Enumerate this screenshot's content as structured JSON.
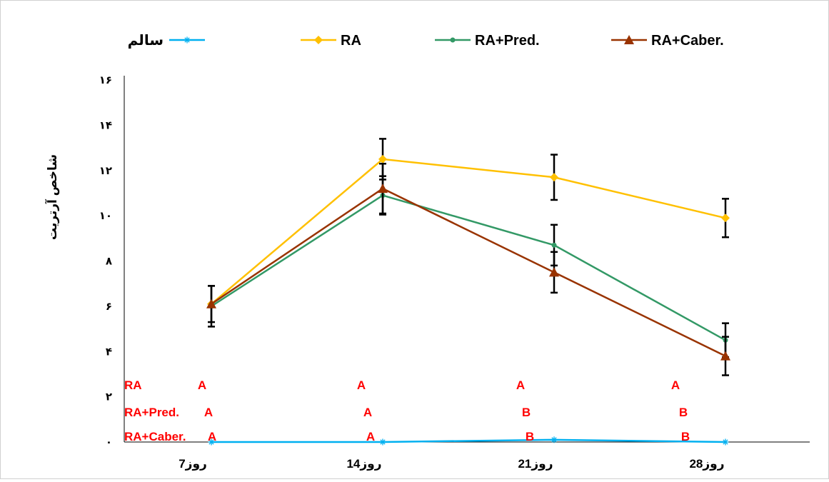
{
  "chart_data": {
    "type": "line",
    "ylabel": "شاخص آرتریت",
    "xlabel": "",
    "ylim": [
      0,
      16
    ],
    "yticks": [
      0,
      2,
      4,
      6,
      8,
      10,
      12,
      14,
      16
    ],
    "ytick_labels": [
      "۰",
      "۲",
      "۴",
      "۶",
      "۸",
      "۱۰",
      "۱۲",
      "۱۴",
      "۱۶"
    ],
    "categories": [
      "روز7",
      "روز14",
      "روز21",
      "روز28"
    ],
    "grid": false,
    "legend_position": "top",
    "series": [
      {
        "name": "سالم",
        "color": "#00b0f0",
        "marker": "asterisk",
        "values": [
          0,
          0,
          0.1,
          0
        ],
        "errors": [
          0,
          0,
          0,
          0
        ]
      },
      {
        "name": "RA",
        "color": "#ffc000",
        "marker": "diamond",
        "values": [
          6.1,
          12.5,
          11.7,
          9.9
        ],
        "errors": [
          0,
          0.9,
          1.0,
          0.85
        ]
      },
      {
        "name": "RA+Pred.",
        "color": "#339966",
        "marker": "circle",
        "values": [
          6.0,
          10.9,
          8.7,
          4.5
        ],
        "errors": [
          0.9,
          0.85,
          0.9,
          0.75
        ]
      },
      {
        "name": "RA+Caber.",
        "color": "#993300",
        "marker": "triangle",
        "values": [
          6.1,
          11.2,
          7.5,
          3.8
        ],
        "errors": [
          0.8,
          1.1,
          0.9,
          0.85
        ]
      }
    ],
    "annotations": {
      "row_labels": [
        "RA",
        "RA+Pred.",
        "RA+Caber."
      ],
      "rows": [
        [
          "A",
          "A",
          "A",
          "A"
        ],
        [
          "A",
          "A",
          "B",
          "B"
        ],
        [
          "A",
          "A",
          "B",
          "B"
        ]
      ],
      "color": "#ff0000"
    }
  }
}
